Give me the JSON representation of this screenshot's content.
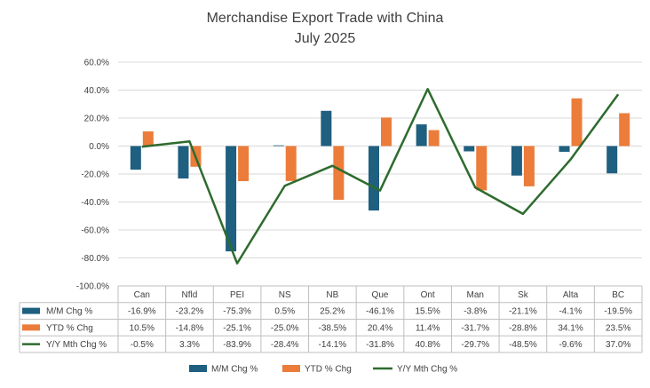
{
  "chart_data": {
    "type": "bar",
    "title": "Merchandise Export Trade with China",
    "subtitle": "July 2025",
    "categories": [
      "Can",
      "Nfld",
      "PEI",
      "NS",
      "NB",
      "Que",
      "Ont",
      "Man",
      "Sk",
      "Alta",
      "BC"
    ],
    "ylim": [
      -100,
      60
    ],
    "y_ticks": [
      "60.0%",
      "40.0%",
      "20.0%",
      "0.0%",
      "-20.0%",
      "-40.0%",
      "-60.0%",
      "-80.0%",
      "-100.0%"
    ],
    "y_tick_values": [
      60,
      40,
      20,
      0,
      -20,
      -40,
      -60,
      -80,
      -100
    ],
    "grid": true,
    "legend_position": "bottom",
    "data_table": true,
    "series": [
      {
        "name": "M/M Chg %",
        "kind": "bar",
        "color": "#1f5f7f",
        "values": [
          -16.9,
          -23.2,
          -75.3,
          0.5,
          25.2,
          -46.1,
          15.5,
          -3.8,
          -21.1,
          -4.1,
          -19.5
        ],
        "labels": [
          "-16.9%",
          "-23.2%",
          "-75.3%",
          "0.5%",
          "25.2%",
          "-46.1%",
          "15.5%",
          "-3.8%",
          "-21.1%",
          "-4.1%",
          "-19.5%"
        ]
      },
      {
        "name": "YTD % Chg",
        "kind": "bar",
        "color": "#ec7c3a",
        "values": [
          10.5,
          -14.8,
          -25.1,
          -25.0,
          -38.5,
          20.4,
          11.4,
          -31.7,
          -28.8,
          34.1,
          23.5
        ],
        "labels": [
          "10.5%",
          "-14.8%",
          "-25.1%",
          "-25.0%",
          "-38.5%",
          "20.4%",
          "11.4%",
          "-31.7%",
          "-28.8%",
          "34.1%",
          "23.5%"
        ]
      },
      {
        "name": "Y/Y Mth Chg %",
        "kind": "line",
        "color": "#2e6b2e",
        "values": [
          -0.5,
          3.3,
          -83.9,
          -28.4,
          -14.1,
          -31.8,
          40.8,
          -29.7,
          -48.5,
          -9.6,
          37.0
        ],
        "labels": [
          "-0.5%",
          "3.3%",
          "-83.9%",
          "-28.4%",
          "-14.1%",
          "-31.8%",
          "40.8%",
          "-29.7%",
          "-48.5%",
          "-9.6%",
          "37.0%"
        ]
      }
    ]
  }
}
